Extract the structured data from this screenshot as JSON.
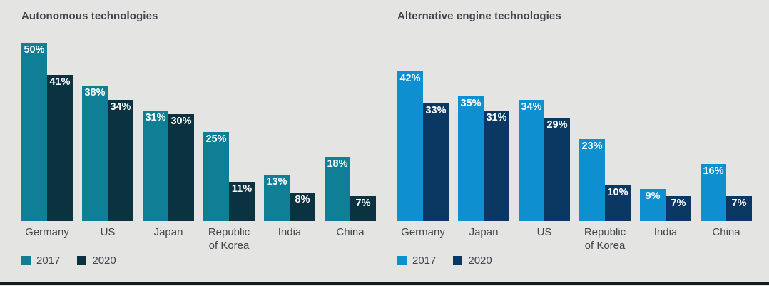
{
  "page": {
    "background": "#e4e4e2",
    "bottom_rule_color": "#131b24"
  },
  "chart_data": [
    {
      "type": "bar",
      "title": "Autonomous technologies",
      "categories": [
        "Germany",
        "US",
        "Japan",
        "Republic of Korea",
        "India",
        "China"
      ],
      "series": [
        {
          "name": "2017",
          "color": "#0e7f94",
          "values": [
            50,
            38,
            31,
            25,
            13,
            18
          ]
        },
        {
          "name": "2020",
          "color": "#0b3240",
          "values": [
            41,
            34,
            30,
            11,
            8,
            7
          ]
        }
      ],
      "value_suffix": "%",
      "ylim": [
        0,
        50
      ],
      "grid": false,
      "legend_position": "bottom-left",
      "data_labels": "inside-top-white"
    },
    {
      "type": "bar",
      "title": "Alternative engine technologies",
      "categories": [
        "Germany",
        "Japan",
        "US",
        "Republic of Korea",
        "India",
        "China"
      ],
      "series": [
        {
          "name": "2017",
          "color": "#0d8fd0",
          "values": [
            42,
            35,
            34,
            23,
            9,
            16
          ]
        },
        {
          "name": "2020",
          "color": "#0b3763",
          "values": [
            33,
            31,
            29,
            10,
            7,
            7
          ]
        }
      ],
      "value_suffix": "%",
      "ylim": [
        0,
        50
      ],
      "grid": false,
      "legend_position": "bottom-left",
      "data_labels": "inside-top-white"
    }
  ]
}
